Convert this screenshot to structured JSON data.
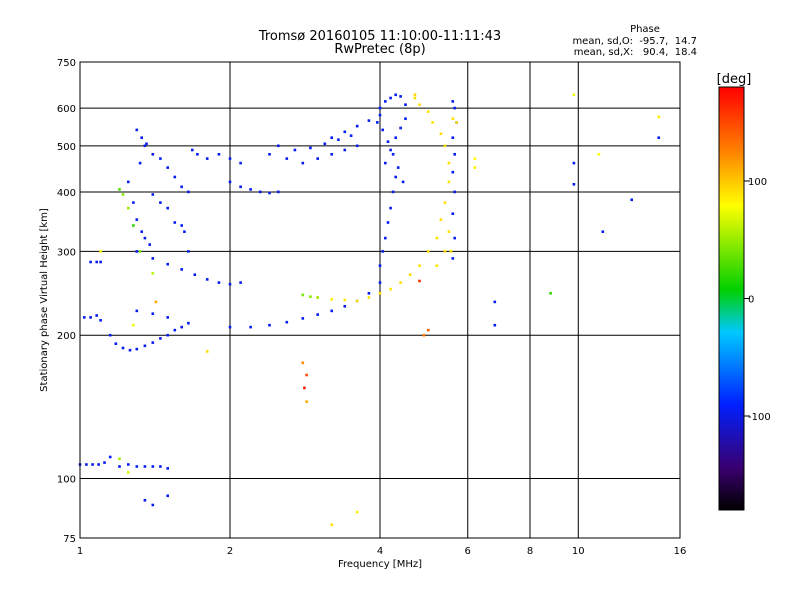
{
  "chart_data": {
    "type": "scatter",
    "title": "Tromsø 20160105 11:10:00-11:11:43",
    "subtitle": "RwPretec (8p)",
    "xlabel": "Frequency [MHz]",
    "ylabel": "Stationary phase Virtual Height [km]",
    "x_scale": "log",
    "y_scale": "log",
    "xlim": [
      1,
      16
    ],
    "ylim": [
      75,
      750
    ],
    "x_ticks": [
      1,
      2,
      4,
      6,
      8,
      10,
      16
    ],
    "x_tick_labels": [
      "1",
      "2",
      "4",
      "6",
      "8",
      "10",
      "16"
    ],
    "y_ticks": [
      75,
      100,
      200,
      300,
      400,
      500,
      600,
      750
    ],
    "y_tick_labels": [
      "75",
      "100",
      "200",
      "300",
      "400",
      "500",
      "600",
      "750"
    ],
    "grid": true,
    "colorbar": {
      "title": "[deg]",
      "range": [
        -180,
        180
      ],
      "ticks": [
        100,
        0,
        -100
      ],
      "tick_labels": [
        "100",
        "0",
        "-100"
      ],
      "colors": [
        "#000000",
        "#3a0070",
        "#0020ff",
        "#00c8ff",
        "#00d000",
        "#ffff00",
        "#ff8000",
        "#ff0000"
      ]
    },
    "phase_stats": {
      "heading": "Phase",
      "line1": "mean, sd,O:  -95.7,  14.7",
      "line2": "mean, sd,X:   90.4,  18.4"
    },
    "series": [
      {
        "mode": "O",
        "points": [
          [
            1.0,
            107,
            -100
          ],
          [
            1.03,
            107,
            -98
          ],
          [
            1.06,
            107,
            -97
          ],
          [
            1.09,
            107,
            -96
          ],
          [
            1.12,
            108,
            -96
          ],
          [
            1.15,
            111,
            -90
          ],
          [
            1.2,
            106,
            -95
          ],
          [
            1.25,
            107,
            -96
          ],
          [
            1.3,
            106,
            -94
          ],
          [
            1.35,
            106,
            -96
          ],
          [
            1.4,
            106,
            -92
          ],
          [
            1.45,
            106,
            -98
          ],
          [
            1.5,
            105,
            -96
          ],
          [
            1.02,
            218,
            -95
          ],
          [
            1.05,
            218,
            -96
          ],
          [
            1.08,
            220,
            -97
          ],
          [
            1.1,
            215,
            -94
          ],
          [
            1.05,
            285,
            -95
          ],
          [
            1.08,
            285,
            -97
          ],
          [
            1.1,
            285,
            -96
          ],
          [
            1.15,
            200,
            -92
          ],
          [
            1.18,
            192,
            -95
          ],
          [
            1.22,
            188,
            -97
          ],
          [
            1.26,
            186,
            -96
          ],
          [
            1.3,
            187,
            -95
          ],
          [
            1.35,
            190,
            -96
          ],
          [
            1.4,
            193,
            -97
          ],
          [
            1.45,
            197,
            -98
          ],
          [
            1.5,
            200,
            -95
          ],
          [
            1.55,
            205,
            -96
          ],
          [
            1.6,
            208,
            -97
          ],
          [
            1.65,
            212,
            -95
          ],
          [
            1.3,
            225,
            -96
          ],
          [
            1.4,
            222,
            -94
          ],
          [
            1.5,
            218,
            -96
          ],
          [
            1.3,
            300,
            -95
          ],
          [
            1.4,
            290,
            -96
          ],
          [
            1.5,
            282,
            -94
          ],
          [
            1.6,
            275,
            -95
          ],
          [
            1.7,
            268,
            -96
          ],
          [
            1.8,
            262,
            -95
          ],
          [
            1.9,
            258,
            -96
          ],
          [
            2.0,
            256,
            -97
          ],
          [
            2.1,
            258,
            -95
          ],
          [
            1.25,
            420,
            -95
          ],
          [
            1.28,
            380,
            -96
          ],
          [
            1.3,
            350,
            -94
          ],
          [
            1.33,
            330,
            -95
          ],
          [
            1.35,
            320,
            -96
          ],
          [
            1.38,
            310,
            -97
          ],
          [
            1.32,
            460,
            -95
          ],
          [
            1.35,
            500,
            -96
          ],
          [
            1.4,
            480,
            -95
          ],
          [
            1.45,
            470,
            -94
          ],
          [
            1.5,
            450,
            -96
          ],
          [
            1.55,
            430,
            -95
          ],
          [
            1.6,
            410,
            -96
          ],
          [
            1.65,
            400,
            -95
          ],
          [
            1.3,
            540,
            -95
          ],
          [
            1.33,
            520,
            -96
          ],
          [
            1.36,
            505,
            -97
          ],
          [
            1.4,
            395,
            -94
          ],
          [
            1.45,
            380,
            -96
          ],
          [
            1.5,
            370,
            -95
          ],
          [
            1.55,
            345,
            -96
          ],
          [
            1.6,
            340,
            -94
          ],
          [
            1.62,
            330,
            -96
          ],
          [
            1.65,
            300,
            -95
          ],
          [
            1.68,
            490,
            -96
          ],
          [
            1.72,
            480,
            -95
          ],
          [
            1.8,
            470,
            -94
          ],
          [
            2.0,
            420,
            -95
          ],
          [
            2.1,
            410,
            -96
          ],
          [
            2.2,
            405,
            -95
          ],
          [
            2.3,
            400,
            -96
          ],
          [
            2.4,
            398,
            -97
          ],
          [
            2.5,
            400,
            -95
          ],
          [
            1.9,
            480,
            -96
          ],
          [
            2.0,
            470,
            -94
          ],
          [
            2.1,
            460,
            -95
          ],
          [
            2.4,
            480,
            -96
          ],
          [
            2.6,
            470,
            -95
          ],
          [
            2.8,
            460,
            -96
          ],
          [
            3.0,
            470,
            -97
          ],
          [
            3.2,
            480,
            -95
          ],
          [
            3.4,
            490,
            -96
          ],
          [
            3.6,
            500,
            -97
          ],
          [
            2.5,
            500,
            -96
          ],
          [
            2.7,
            490,
            -95
          ],
          [
            2.9,
            495,
            -94
          ],
          [
            3.1,
            505,
            -96
          ],
          [
            3.3,
            515,
            -95
          ],
          [
            3.5,
            525,
            -94
          ],
          [
            3.2,
            520,
            -96
          ],
          [
            3.4,
            535,
            -95
          ],
          [
            3.6,
            550,
            -96
          ],
          [
            3.8,
            565,
            -95
          ],
          [
            4.0,
            580,
            -96
          ],
          [
            2.0,
            208,
            -96
          ],
          [
            2.2,
            208,
            -95
          ],
          [
            2.4,
            210,
            -96
          ],
          [
            2.6,
            213,
            -97
          ],
          [
            2.8,
            217,
            -95
          ],
          [
            3.0,
            221,
            -96
          ],
          [
            3.2,
            225,
            -95
          ],
          [
            3.4,
            230,
            -96
          ],
          [
            3.6,
            236,
            -95
          ],
          [
            3.8,
            245,
            -96
          ],
          [
            4.0,
            258,
            -97
          ],
          [
            4.0,
            280,
            -95
          ],
          [
            4.05,
            300,
            -96
          ],
          [
            4.1,
            320,
            -95
          ],
          [
            4.15,
            345,
            -96
          ],
          [
            4.2,
            370,
            -95
          ],
          [
            4.25,
            400,
            -96
          ],
          [
            4.3,
            430,
            -97
          ],
          [
            4.1,
            460,
            -95
          ],
          [
            4.2,
            490,
            -96
          ],
          [
            4.3,
            520,
            -95
          ],
          [
            4.4,
            545,
            -96
          ],
          [
            4.5,
            570,
            -95
          ],
          [
            4.0,
            600,
            -96
          ],
          [
            4.1,
            620,
            -95
          ],
          [
            4.2,
            630,
            -96
          ],
          [
            4.3,
            640,
            -95
          ],
          [
            4.4,
            635,
            -96
          ],
          [
            4.5,
            610,
            -95
          ],
          [
            3.95,
            560,
            -96
          ],
          [
            4.05,
            540,
            -95
          ],
          [
            4.15,
            510,
            -96
          ],
          [
            4.25,
            480,
            -95
          ],
          [
            4.35,
            450,
            -96
          ],
          [
            4.45,
            420,
            -95
          ],
          [
            5.6,
            620,
            -96
          ],
          [
            5.65,
            600,
            -95
          ],
          [
            5.7,
            560,
            -96
          ],
          [
            5.6,
            520,
            -95
          ],
          [
            5.65,
            480,
            -96
          ],
          [
            5.6,
            440,
            -95
          ],
          [
            5.65,
            400,
            -96
          ],
          [
            5.6,
            360,
            -95
          ],
          [
            5.65,
            320,
            -96
          ],
          [
            5.6,
            290,
            -95
          ],
          [
            1.35,
            90,
            -95
          ],
          [
            1.4,
            88,
            -96
          ],
          [
            1.5,
            92,
            -95
          ],
          [
            6.8,
            235,
            -96
          ],
          [
            6.8,
            210,
            -95
          ],
          [
            9.8,
            460,
            -96
          ],
          [
            9.8,
            415,
            -97
          ],
          [
            11.2,
            330,
            -95
          ],
          [
            12.8,
            385,
            -96
          ],
          [
            14.5,
            520,
            -95
          ]
        ]
      },
      {
        "mode": "X",
        "points": [
          [
            3.0,
            240,
            90
          ],
          [
            3.2,
            238,
            85
          ],
          [
            3.4,
            237,
            88
          ],
          [
            3.6,
            236,
            92
          ],
          [
            3.8,
            240,
            90
          ],
          [
            4.0,
            245,
            93
          ],
          [
            4.2,
            250,
            88
          ],
          [
            4.4,
            258,
            90
          ],
          [
            4.6,
            268,
            92
          ],
          [
            4.8,
            280,
            90
          ],
          [
            5.0,
            300,
            91
          ],
          [
            5.2,
            320,
            90
          ],
          [
            5.3,
            350,
            92
          ],
          [
            5.4,
            380,
            90
          ],
          [
            5.5,
            420,
            89
          ],
          [
            5.5,
            460,
            91
          ],
          [
            5.4,
            500,
            90
          ],
          [
            5.3,
            530,
            92
          ],
          [
            5.1,
            560,
            90
          ],
          [
            5.0,
            590,
            89
          ],
          [
            4.8,
            610,
            90
          ],
          [
            4.7,
            630,
            91
          ],
          [
            5.2,
            280,
            88
          ],
          [
            5.4,
            300,
            92
          ],
          [
            5.5,
            330,
            90
          ],
          [
            5.55,
            300,
            89
          ],
          [
            5.6,
            570,
            90
          ],
          [
            5.7,
            560,
            91
          ],
          [
            2.8,
            243,
            40
          ],
          [
            2.9,
            241,
            45
          ],
          [
            3.0,
            240,
            50
          ],
          [
            6.2,
            450,
            85
          ],
          [
            6.2,
            470,
            80
          ],
          [
            9.8,
            640,
            75
          ],
          [
            11.0,
            480,
            80
          ],
          [
            14.5,
            575,
            85
          ],
          [
            2.8,
            175,
            125
          ],
          [
            2.85,
            165,
            150
          ],
          [
            2.82,
            155,
            170
          ],
          [
            2.85,
            145,
            110
          ],
          [
            4.9,
            200,
            130
          ],
          [
            5.0,
            205,
            140
          ],
          [
            4.8,
            260,
            160
          ],
          [
            1.2,
            405,
            30
          ],
          [
            1.22,
            395,
            45
          ],
          [
            1.25,
            370,
            50
          ],
          [
            1.28,
            340,
            20
          ],
          [
            1.32,
            300,
            40
          ],
          [
            1.4,
            270,
            60
          ],
          [
            1.1,
            300,
            80
          ],
          [
            1.2,
            110,
            55
          ],
          [
            1.25,
            103,
            70
          ],
          [
            1.42,
            235,
            110
          ],
          [
            1.28,
            210,
            75
          ],
          [
            1.8,
            185,
            90
          ],
          [
            3.2,
            80,
            90
          ],
          [
            3.6,
            85,
            85
          ],
          [
            4.7,
            640,
            95
          ],
          [
            8.8,
            245,
            20
          ]
        ]
      }
    ]
  }
}
